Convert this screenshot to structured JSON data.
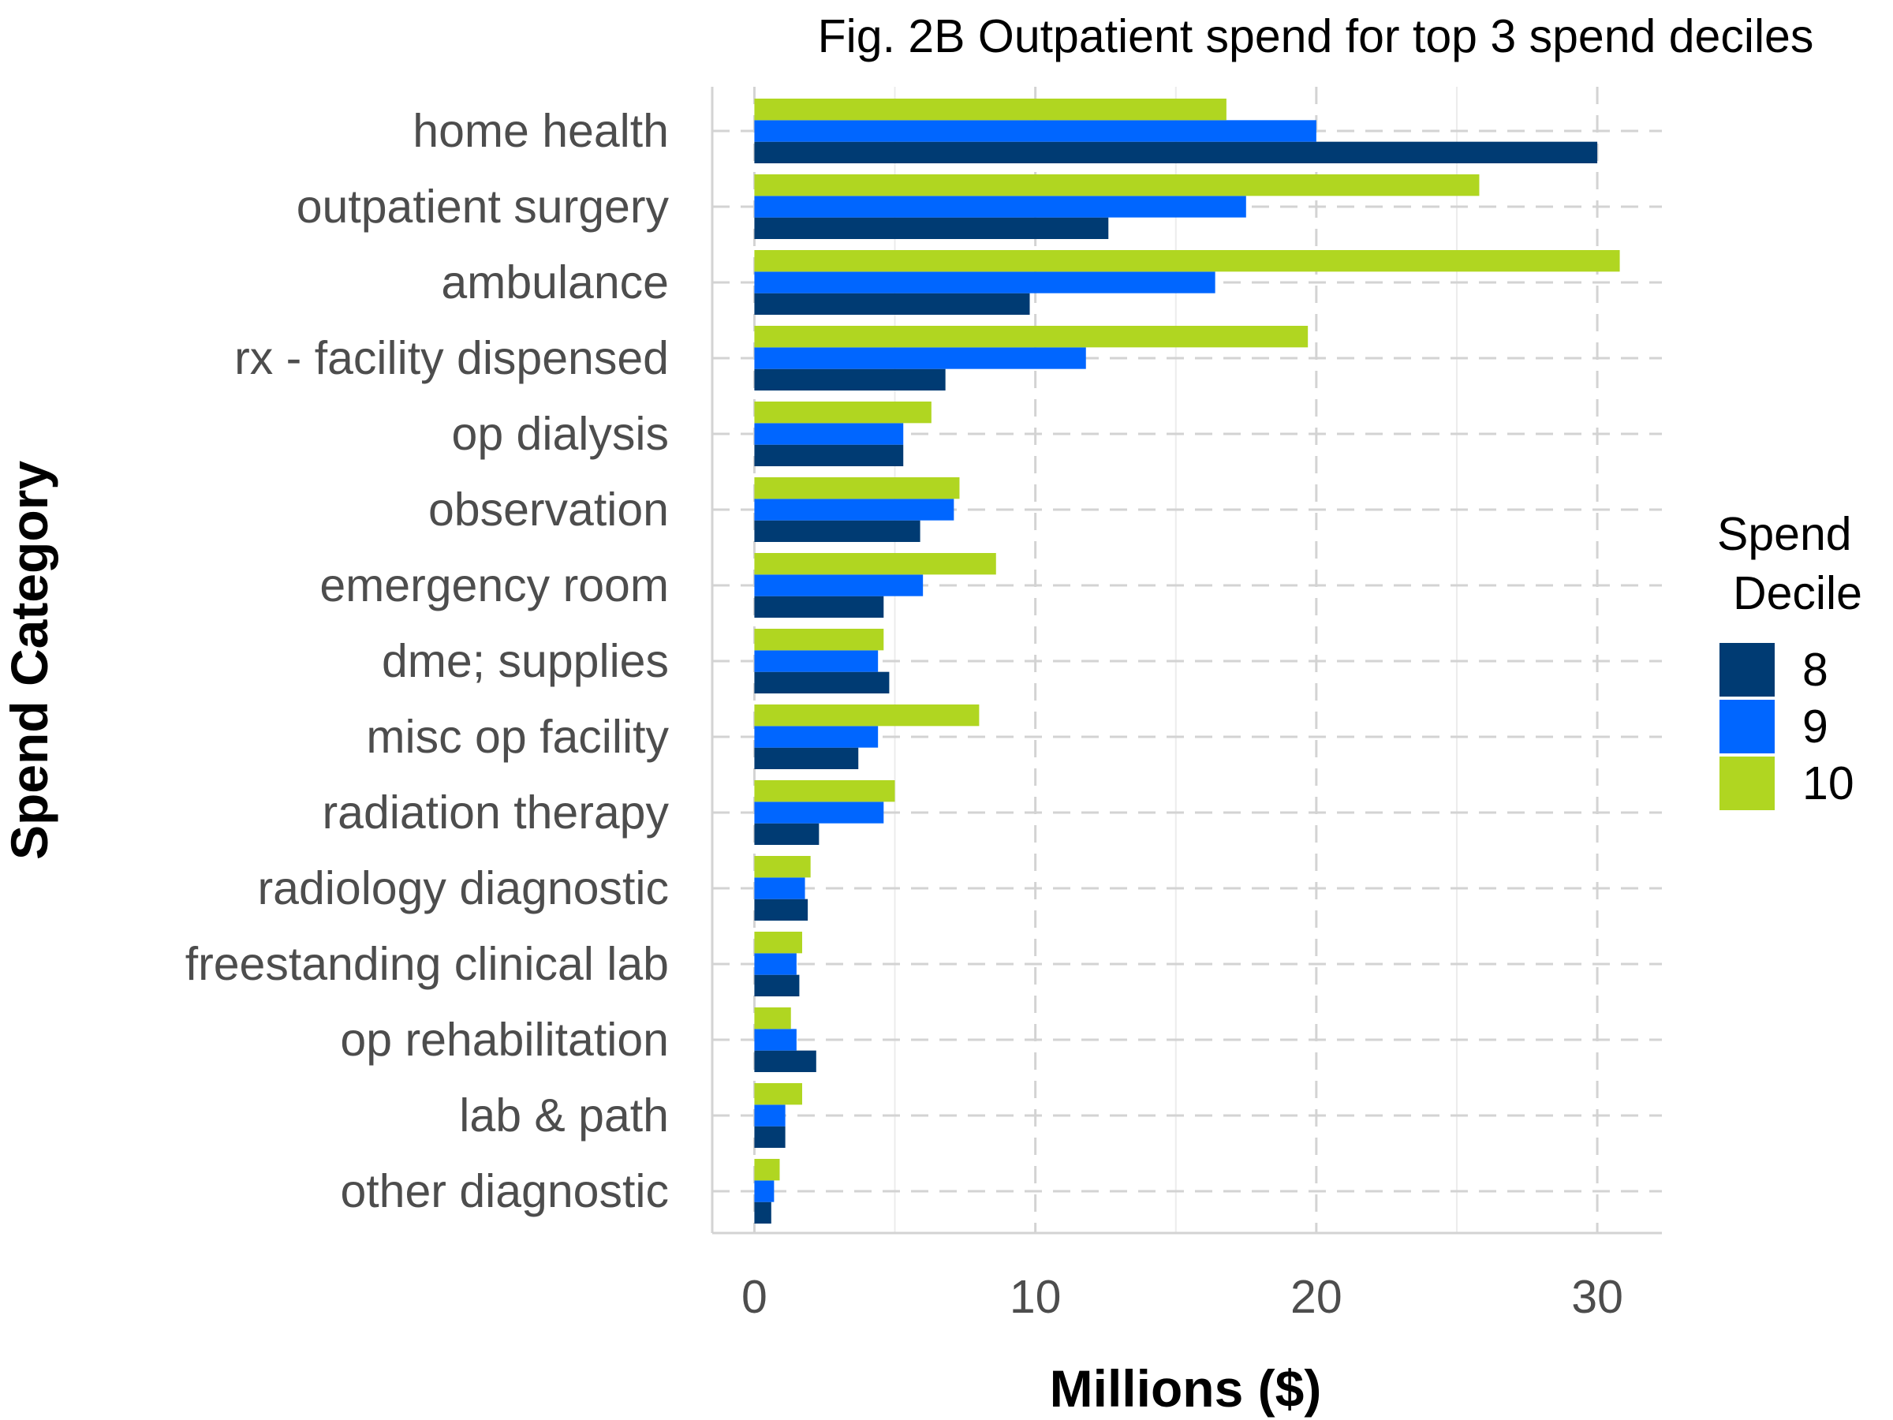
{
  "chart_data": {
    "type": "bar",
    "orientation": "horizontal",
    "title": "Fig. 2B Outpatient spend for top 3 spend deciles",
    "xlabel": "Millions ($)",
    "ylabel": "Spend Category",
    "xlim": [
      -1.5,
      32.3
    ],
    "xticks": [
      0,
      10,
      20,
      30
    ],
    "xtick_labels": [
      "0",
      "10",
      "20",
      "30"
    ],
    "grid": true,
    "legend": {
      "title_lines": [
        "Spend",
        "Decile"
      ],
      "position": "right"
    },
    "categories": [
      "home health",
      "outpatient surgery",
      "ambulance",
      "rx - facility dispensed",
      "op dialysis",
      "observation",
      "emergency room",
      "dme; supplies",
      "misc op facility",
      "radiation therapy",
      "radiology diagnostic",
      "freestanding clinical lab",
      "op rehabilitation",
      "lab & path",
      "other diagnostic"
    ],
    "series": [
      {
        "name": "8",
        "color": "#003b73",
        "values": [
          30.0,
          12.6,
          9.8,
          6.8,
          5.3,
          5.9,
          4.6,
          4.8,
          3.7,
          2.3,
          1.9,
          1.6,
          2.2,
          1.1,
          0.6
        ]
      },
      {
        "name": "9",
        "color": "#0066ff",
        "values": [
          20.0,
          17.5,
          16.4,
          11.8,
          5.3,
          7.1,
          6.0,
          4.4,
          4.4,
          4.6,
          1.8,
          1.5,
          1.5,
          1.1,
          0.7
        ]
      },
      {
        "name": "10",
        "color": "#b0d621",
        "values": [
          16.8,
          25.8,
          30.8,
          19.7,
          6.3,
          7.3,
          8.6,
          4.6,
          8.0,
          5.0,
          2.0,
          1.7,
          1.3,
          1.7,
          0.9
        ]
      }
    ]
  }
}
